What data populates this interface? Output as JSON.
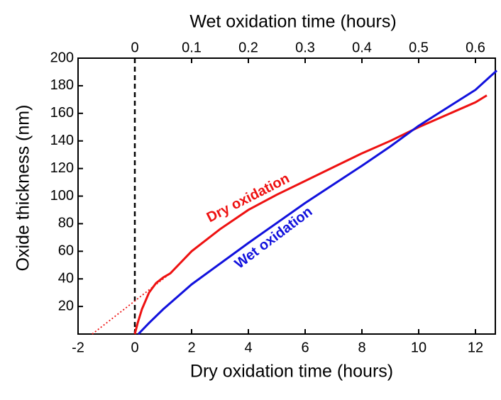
{
  "chart_data": {
    "type": "line",
    "xlabel": "Dry oxidation time (hours)",
    "x2label": "Wet oxidation time (hours)",
    "ylabel": "Oxide thickness (nm)",
    "xlim": [
      -2,
      12.7
    ],
    "xticks": [
      -2,
      0,
      2,
      4,
      6,
      8,
      10,
      12
    ],
    "x2lim": [
      -0.1,
      0.635
    ],
    "x2ticks": [
      0,
      0.1,
      0.2,
      0.3,
      0.4,
      0.5,
      0.6
    ],
    "ylim": [
      0,
      200
    ],
    "yticks": [
      20,
      40,
      60,
      80,
      100,
      120,
      140,
      160,
      180,
      200
    ],
    "reference_line_x": 0,
    "series": [
      {
        "name": "Dry oxidation",
        "color": "#ee1111",
        "axis": "x",
        "x": [
          0,
          0.1,
          0.25,
          0.5,
          0.75,
          1,
          1.25,
          2,
          3,
          4,
          5,
          6,
          7,
          8,
          9,
          10,
          11,
          12,
          12.4
        ],
        "values": [
          0,
          8,
          18,
          30,
          37,
          41,
          44,
          60,
          76,
          90,
          101,
          111,
          121,
          131,
          140,
          150,
          159,
          168,
          173
        ]
      },
      {
        "name": "Wet oxidation",
        "color": "#1111dd",
        "axis": "x2",
        "x": [
          0.00625,
          0.025,
          0.05,
          0.1,
          0.2,
          0.3,
          0.4,
          0.45,
          0.5,
          0.6,
          0.6375
        ],
        "values": [
          0,
          8,
          18,
          36,
          66,
          95,
          122,
          136,
          151,
          177,
          191
        ]
      },
      {
        "color": "#ee1111",
        "style": "dotted",
        "axis": "x",
        "x": [
          -1.5,
          1.25
        ],
        "values": [
          0,
          44
        ]
      }
    ]
  }
}
